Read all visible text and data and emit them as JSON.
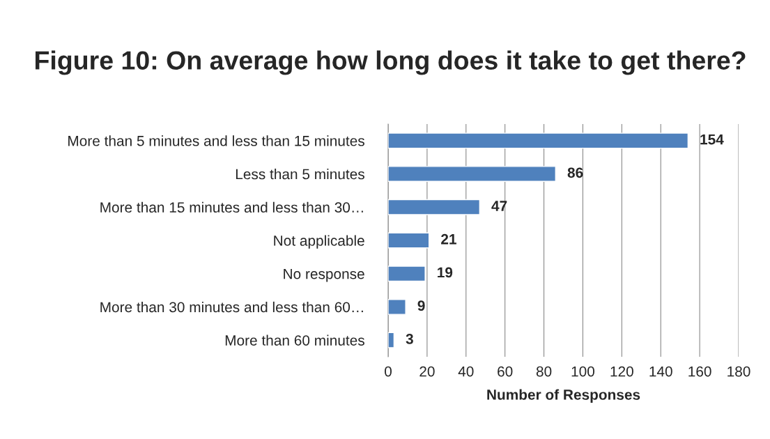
{
  "chart_data": {
    "type": "bar",
    "orientation": "horizontal",
    "title": "Figure 10: On average how long does it take to get there?",
    "xlabel": "Number of Responses",
    "categories": [
      "More than 5 minutes and less than 15 minutes",
      "Less than 5 minutes",
      "More than 15 minutes and less than 30…",
      "Not applicable",
      "No response",
      "More than 30 minutes and less than 60…",
      "More than 60 minutes"
    ],
    "values": [
      154,
      86,
      47,
      21,
      19,
      9,
      3
    ],
    "color": "#4f81bd",
    "xlim": [
      0,
      180
    ],
    "xticks": [
      0,
      20,
      40,
      60,
      80,
      100,
      120,
      140,
      160,
      180
    ],
    "grid": "x",
    "data_labels": true,
    "legend": false
  }
}
